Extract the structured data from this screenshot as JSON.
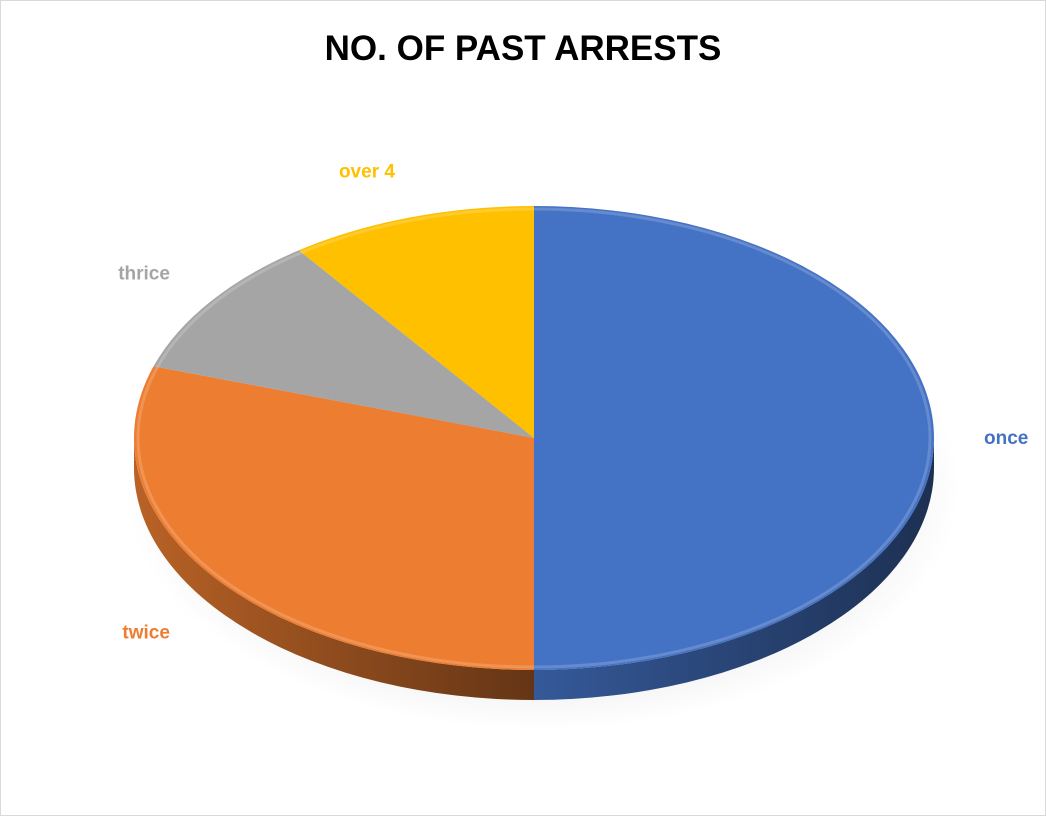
{
  "chart_data": {
    "type": "pie",
    "title": "NO. OF PAST ARRESTS",
    "three_d": true,
    "slices": [
      {
        "label": "once",
        "value": 50,
        "color": "#4472C4"
      },
      {
        "label": "twice",
        "value": 30,
        "color": "#ED7D31"
      },
      {
        "label": "thrice",
        "value": 10,
        "color": "#A5A5A5"
      },
      {
        "label": "over 4",
        "value": 10,
        "color": "#FFC000"
      }
    ],
    "legend": "none"
  }
}
